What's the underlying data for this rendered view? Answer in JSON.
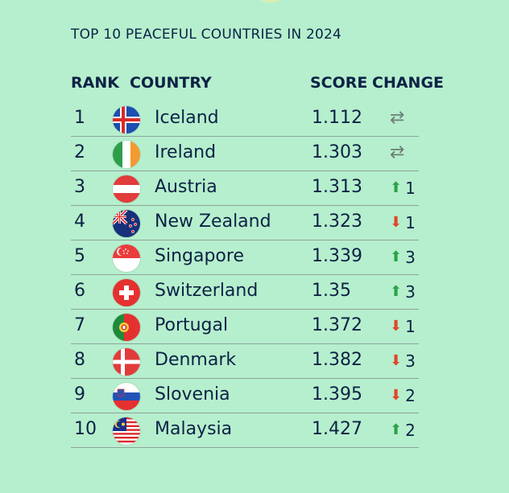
{
  "title": "TOP 10 PEACEFUL COUNTRIES IN 2024",
  "headers": {
    "rank": "RANK",
    "country": "COUNTRY",
    "score": "SCORE",
    "change": "CHANGE"
  },
  "rows": [
    {
      "rank": "1",
      "country": "Iceland",
      "score": "1.112",
      "change_dir": "same",
      "change_value": "",
      "flag_icon": "iceland-flag-icon"
    },
    {
      "rank": "2",
      "country": "Ireland",
      "score": "1.303",
      "change_dir": "same",
      "change_value": "",
      "flag_icon": "ireland-flag-icon"
    },
    {
      "rank": "3",
      "country": "Austria",
      "score": "1.313",
      "change_dir": "up",
      "change_value": "1",
      "flag_icon": "austria-flag-icon"
    },
    {
      "rank": "4",
      "country": "New Zealand",
      "score": "1.323",
      "change_dir": "down",
      "change_value": "1",
      "flag_icon": "new-zealand-flag-icon"
    },
    {
      "rank": "5",
      "country": "Singapore",
      "score": "1.339",
      "change_dir": "up",
      "change_value": "3",
      "flag_icon": "singapore-flag-icon"
    },
    {
      "rank": "6",
      "country": "Switzerland",
      "score": "1.35",
      "change_dir": "up",
      "change_value": "3",
      "flag_icon": "switzerland-flag-icon"
    },
    {
      "rank": "7",
      "country": "Portugal",
      "score": "1.372",
      "change_dir": "down",
      "change_value": "1",
      "flag_icon": "portugal-flag-icon"
    },
    {
      "rank": "8",
      "country": "Denmark",
      "score": "1.382",
      "change_dir": "down",
      "change_value": "3",
      "flag_icon": "denmark-flag-icon"
    },
    {
      "rank": "9",
      "country": "Slovenia",
      "score": "1.395",
      "change_dir": "down",
      "change_value": "2",
      "flag_icon": "slovenia-flag-icon"
    },
    {
      "rank": "10",
      "country": "Malaysia",
      "score": "1.427",
      "change_dir": "up",
      "change_value": "2",
      "flag_icon": "malaysia-flag-icon"
    }
  ],
  "colors": {
    "background": "#b6efcd",
    "text": "#0d2246",
    "up": "#2aa34a",
    "down": "#e0462c"
  }
}
